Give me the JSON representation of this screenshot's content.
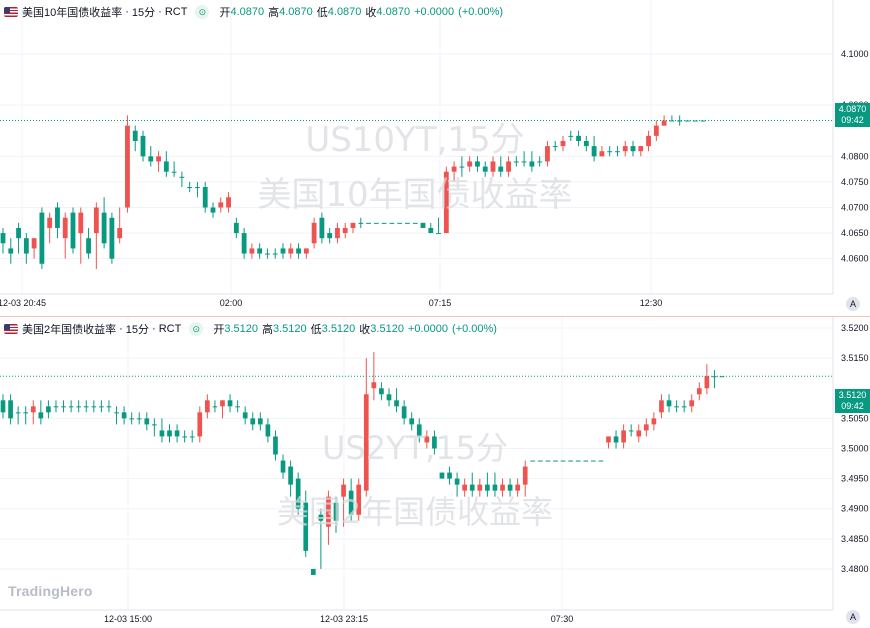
{
  "colors": {
    "up": "#ef5350",
    "down": "#089981",
    "price_badge": "#089981",
    "grid": "#f0f3fa"
  },
  "top_chart": {
    "symbol": "美国10年国债收益率",
    "interval": "15分",
    "session": "RCT",
    "open_label": "开",
    "open": "4.0870",
    "high_label": "高",
    "high": "4.0870",
    "low_label": "低",
    "low": "4.0870",
    "close_label": "收",
    "close": "4.0870",
    "change": "+0.0000",
    "change_pct": "(+0.00%)",
    "watermark_line1": "US10YT,15分",
    "watermark_line2": "美国10年国债收益率",
    "price_badge": "4.0870",
    "countdown": "09:42",
    "auto_scale_label": "A"
  },
  "bottom_chart": {
    "symbol": "美国2年国债收益率",
    "interval": "15分",
    "session": "RCT",
    "open_label": "开",
    "open": "3.5120",
    "high_label": "高",
    "high": "3.5120",
    "low_label": "低",
    "low": "3.5120",
    "close_label": "收",
    "close": "3.5120",
    "change": "+0.0000",
    "change_pct": "(+0.00%)",
    "watermark_line1": "US2YT,15分",
    "watermark_line2": "美国2年国债收益率",
    "price_badge": "3.5120",
    "countdown": "09:42",
    "auto_scale_label": "A",
    "logo": "TradingHero"
  },
  "chart_data": [
    {
      "type": "candlestick",
      "title": "美国10年国债收益率",
      "ylim": [
        4.057,
        4.1045
      ],
      "y_ticks": [
        "4.1000",
        "4.0900",
        "4.0800",
        "4.0750",
        "4.0700",
        "4.0650",
        "4.0600"
      ],
      "x_ticks": [
        "12-03 20:45",
        "02:00",
        "07:15",
        "12:30"
      ],
      "last_price": 4.087,
      "candles": [
        [
          4.065,
          4.066,
          4.061,
          4.063
        ],
        [
          4.062,
          4.064,
          4.059,
          4.061
        ],
        [
          4.066,
          4.067,
          4.061,
          4.064
        ],
        [
          4.064,
          4.065,
          4.059,
          4.061
        ],
        [
          4.062,
          4.064,
          4.06,
          4.064
        ],
        [
          4.069,
          4.07,
          4.058,
          4.059
        ],
        [
          4.066,
          4.069,
          4.063,
          4.068
        ],
        [
          4.07,
          4.071,
          4.064,
          4.066
        ],
        [
          4.064,
          4.069,
          4.06,
          4.068
        ],
        [
          4.069,
          4.07,
          4.061,
          4.062
        ],
        [
          4.065,
          4.07,
          4.059,
          4.069
        ],
        [
          4.064,
          4.066,
          4.06,
          4.061
        ],
        [
          4.065,
          4.071,
          4.058,
          4.07
        ],
        [
          4.069,
          4.072,
          4.062,
          4.063
        ],
        [
          4.068,
          4.069,
          4.059,
          4.06
        ],
        [
          4.064,
          4.07,
          4.063,
          4.066
        ],
        [
          4.07,
          4.088,
          4.069,
          4.086
        ],
        [
          4.085,
          4.086,
          4.081,
          4.083
        ],
        [
          4.084,
          4.085,
          4.079,
          4.08
        ],
        [
          4.08,
          4.082,
          4.078,
          4.079
        ],
        [
          4.079,
          4.081,
          4.077,
          4.08
        ],
        [
          4.079,
          4.081,
          4.076,
          4.077
        ],
        [
          4.077,
          4.079,
          4.076,
          4.077
        ],
        [
          4.076,
          4.077,
          4.074,
          4.076
        ],
        [
          4.074,
          4.075,
          4.073,
          4.074
        ],
        [
          4.074,
          4.075,
          4.072,
          4.074
        ],
        [
          4.074,
          4.075,
          4.069,
          4.07
        ],
        [
          4.07,
          4.071,
          4.068,
          4.069
        ],
        [
          4.07,
          4.072,
          4.069,
          4.071
        ],
        [
          4.07,
          4.073,
          4.069,
          4.072
        ],
        [
          4.067,
          4.068,
          4.064,
          4.065
        ],
        [
          4.065,
          4.066,
          4.06,
          4.061
        ],
        [
          4.061,
          4.063,
          4.06,
          4.062
        ],
        [
          4.062,
          4.063,
          4.06,
          4.061
        ],
        [
          4.061,
          4.062,
          4.06,
          4.061
        ],
        [
          4.061,
          4.062,
          4.06,
          4.061
        ],
        [
          4.062,
          4.063,
          4.06,
          4.061
        ],
        [
          4.061,
          4.063,
          4.06,
          4.062
        ],
        [
          4.062,
          4.063,
          4.06,
          4.061
        ],
        [
          4.061,
          4.062,
          4.06,
          4.062
        ],
        [
          4.063,
          4.068,
          4.062,
          4.067
        ],
        [
          4.068,
          4.069,
          4.063,
          4.064
        ],
        [
          4.065,
          4.066,
          4.063,
          4.064
        ],
        [
          4.064,
          4.067,
          4.063,
          4.066
        ],
        [
          4.065,
          4.067,
          4.064,
          4.066
        ],
        [
          4.066,
          4.067,
          4.065,
          4.067
        ],
        [
          4.067,
          4.068,
          4.066,
          4.067
        ],
        [
          4.067,
          4.067,
          4.067,
          4.067
        ],
        [
          4.067,
          4.067,
          4.067,
          4.067
        ],
        [
          4.067,
          4.067,
          4.067,
          4.067
        ],
        [
          4.067,
          4.067,
          4.067,
          4.067
        ],
        [
          4.067,
          4.067,
          4.067,
          4.067
        ],
        [
          4.067,
          4.067,
          4.067,
          4.067
        ],
        [
          4.067,
          4.067,
          4.067,
          4.067
        ],
        [
          4.067,
          4.067,
          4.066,
          4.066
        ],
        [
          4.066,
          4.067,
          4.065,
          4.065
        ],
        [
          4.065,
          4.068,
          4.065,
          4.065
        ],
        [
          4.065,
          4.078,
          4.065,
          4.077
        ],
        [
          4.077,
          4.079,
          4.075,
          4.078
        ],
        [
          4.078,
          4.08,
          4.076,
          4.078
        ],
        [
          4.078,
          4.08,
          4.077,
          4.079
        ],
        [
          4.079,
          4.08,
          4.077,
          4.078
        ],
        [
          4.078,
          4.079,
          4.076,
          4.077
        ],
        [
          4.077,
          4.08,
          4.076,
          4.079
        ],
        [
          4.078,
          4.08,
          4.076,
          4.077
        ],
        [
          4.077,
          4.08,
          4.076,
          4.079
        ],
        [
          4.079,
          4.08,
          4.078,
          4.079
        ],
        [
          4.079,
          4.081,
          4.078,
          4.079
        ],
        [
          4.079,
          4.081,
          4.077,
          4.078
        ],
        [
          4.079,
          4.08,
          4.078,
          4.079
        ],
        [
          4.079,
          4.083,
          4.078,
          4.082
        ],
        [
          4.082,
          4.083,
          4.081,
          4.082
        ],
        [
          4.082,
          4.084,
          4.081,
          4.083
        ],
        [
          4.084,
          4.085,
          4.083,
          4.084
        ],
        [
          4.084,
          4.085,
          4.082,
          4.083
        ],
        [
          4.083,
          4.084,
          4.081,
          4.082
        ],
        [
          4.082,
          4.084,
          4.079,
          4.08
        ],
        [
          4.08,
          4.082,
          4.08,
          4.081
        ],
        [
          4.081,
          4.082,
          4.08,
          4.081
        ],
        [
          4.081,
          4.082,
          4.08,
          4.081
        ],
        [
          4.081,
          4.083,
          4.08,
          4.082
        ],
        [
          4.082,
          4.083,
          4.08,
          4.081
        ],
        [
          4.081,
          4.082,
          4.08,
          4.082
        ],
        [
          4.082,
          4.085,
          4.081,
          4.084
        ],
        [
          4.084,
          4.087,
          4.083,
          4.086
        ],
        [
          4.086,
          4.088,
          4.086,
          4.087
        ],
        [
          4.087,
          4.088,
          4.087,
          4.087
        ],
        [
          4.087,
          4.088,
          4.086,
          4.087
        ],
        [
          4.087,
          4.087,
          4.087,
          4.087
        ],
        [
          4.087,
          4.087,
          4.087,
          4.087
        ],
        [
          4.087,
          4.087,
          4.087,
          4.087
        ]
      ]
    },
    {
      "type": "candlestick",
      "title": "美国2年国债收益率",
      "ylim": [
        3.477,
        3.5215
      ],
      "y_ticks": [
        "3.5200",
        "3.5150",
        "3.5050",
        "3.5000",
        "3.4950",
        "3.4900",
        "3.4850",
        "3.4800"
      ],
      "x_ticks": [
        "12-03 15:00",
        "12-03 23:15",
        "07:30"
      ],
      "last_price": 3.512,
      "candles": [
        [
          3.508,
          3.509,
          3.505,
          3.506
        ],
        [
          3.508,
          3.509,
          3.504,
          3.505
        ],
        [
          3.506,
          3.507,
          3.504,
          3.506
        ],
        [
          3.506,
          3.507,
          3.504,
          3.506
        ],
        [
          3.506,
          3.508,
          3.504,
          3.507
        ],
        [
          3.506,
          3.508,
          3.504,
          3.505
        ],
        [
          3.507,
          3.508,
          3.505,
          3.506
        ],
        [
          3.507,
          3.508,
          3.506,
          3.507
        ],
        [
          3.507,
          3.508,
          3.506,
          3.507
        ],
        [
          3.507,
          3.508,
          3.506,
          3.507
        ],
        [
          3.507,
          3.508,
          3.506,
          3.507
        ],
        [
          3.507,
          3.508,
          3.506,
          3.507
        ],
        [
          3.507,
          3.508,
          3.506,
          3.507
        ],
        [
          3.507,
          3.508,
          3.506,
          3.507
        ],
        [
          3.507,
          3.508,
          3.506,
          3.507
        ],
        [
          3.506,
          3.507,
          3.504,
          3.506
        ],
        [
          3.506,
          3.507,
          3.504,
          3.505
        ],
        [
          3.505,
          3.506,
          3.504,
          3.505
        ],
        [
          3.505,
          3.506,
          3.504,
          3.505
        ],
        [
          3.505,
          3.506,
          3.503,
          3.504
        ],
        [
          3.504,
          3.505,
          3.502,
          3.504
        ],
        [
          3.503,
          3.505,
          3.501,
          3.502
        ],
        [
          3.503,
          3.504,
          3.501,
          3.502
        ],
        [
          3.503,
          3.504,
          3.501,
          3.502
        ],
        [
          3.502,
          3.503,
          3.501,
          3.502
        ],
        [
          3.502,
          3.503,
          3.501,
          3.502
        ],
        [
          3.502,
          3.507,
          3.501,
          3.506
        ],
        [
          3.506,
          3.509,
          3.505,
          3.508
        ],
        [
          3.507,
          3.508,
          3.506,
          3.507
        ],
        [
          3.507,
          3.508,
          3.505,
          3.508
        ],
        [
          3.508,
          3.509,
          3.506,
          3.507
        ],
        [
          3.507,
          3.508,
          3.506,
          3.507
        ],
        [
          3.506,
          3.507,
          3.504,
          3.505
        ],
        [
          3.505,
          3.506,
          3.503,
          3.504
        ],
        [
          3.505,
          3.506,
          3.503,
          3.504
        ],
        [
          3.504,
          3.505,
          3.501,
          3.502
        ],
        [
          3.502,
          3.503,
          3.498,
          3.499
        ],
        [
          3.498,
          3.499,
          3.495,
          3.496
        ],
        [
          3.497,
          3.498,
          3.492,
          3.494
        ],
        [
          3.495,
          3.496,
          3.489,
          3.49
        ],
        [
          3.491,
          3.493,
          3.482,
          3.483
        ],
        [
          3.48,
          3.48,
          3.479,
          3.479
        ],
        [
          3.489,
          3.49,
          3.48,
          3.488
        ],
        [
          3.487,
          3.493,
          3.484,
          3.492
        ],
        [
          3.491,
          3.492,
          3.486,
          3.488
        ],
        [
          3.492,
          3.495,
          3.487,
          3.494
        ],
        [
          3.493,
          3.495,
          3.488,
          3.489
        ],
        [
          3.489,
          3.495,
          3.488,
          3.494
        ],
        [
          3.493,
          3.515,
          3.492,
          3.509
        ],
        [
          3.51,
          3.516,
          3.508,
          3.511
        ],
        [
          3.51,
          3.511,
          3.508,
          3.509
        ],
        [
          3.509,
          3.51,
          3.507,
          3.508
        ],
        [
          3.508,
          3.51,
          3.506,
          3.507
        ],
        [
          3.507,
          3.508,
          3.504,
          3.505
        ],
        [
          3.505,
          3.506,
          3.503,
          3.504
        ],
        [
          3.504,
          3.505,
          3.501,
          3.502
        ],
        [
          3.501,
          3.503,
          3.5,
          3.502
        ],
        [
          3.502,
          3.503,
          3.499,
          3.5
        ],
        [
          3.496,
          3.496,
          3.495,
          3.495
        ],
        [
          3.496,
          3.497,
          3.494,
          3.495
        ],
        [
          3.495,
          3.496,
          3.492,
          3.494
        ],
        [
          3.493,
          3.495,
          3.492,
          3.494
        ],
        [
          3.494,
          3.496,
          3.492,
          3.493
        ],
        [
          3.493,
          3.495,
          3.492,
          3.494
        ],
        [
          3.494,
          3.496,
          3.492,
          3.493
        ],
        [
          3.494,
          3.496,
          3.492,
          3.493
        ],
        [
          3.493,
          3.495,
          3.492,
          3.494
        ],
        [
          3.494,
          3.495,
          3.492,
          3.493
        ],
        [
          3.493,
          3.495,
          3.492,
          3.494
        ],
        [
          3.494,
          3.498,
          3.492,
          3.497
        ],
        [
          3.498,
          3.498,
          3.498,
          3.498
        ],
        [
          3.498,
          3.498,
          3.498,
          3.498
        ],
        [
          3.498,
          3.498,
          3.498,
          3.498
        ],
        [
          3.498,
          3.498,
          3.498,
          3.498
        ],
        [
          3.498,
          3.498,
          3.498,
          3.498
        ],
        [
          3.498,
          3.498,
          3.498,
          3.498
        ],
        [
          3.498,
          3.498,
          3.498,
          3.498
        ],
        [
          3.498,
          3.498,
          3.498,
          3.498
        ],
        [
          3.498,
          3.498,
          3.498,
          3.498
        ],
        [
          3.498,
          3.498,
          3.498,
          3.498
        ],
        [
          3.501,
          3.502,
          3.5,
          3.502
        ],
        [
          3.502,
          3.503,
          3.5,
          3.501
        ],
        [
          3.501,
          3.504,
          3.5,
          3.503
        ],
        [
          3.503,
          3.504,
          3.502,
          3.503
        ],
        [
          3.502,
          3.504,
          3.501,
          3.503
        ],
        [
          3.503,
          3.505,
          3.502,
          3.504
        ],
        [
          3.504,
          3.506,
          3.503,
          3.505
        ],
        [
          3.506,
          3.509,
          3.505,
          3.508
        ],
        [
          3.508,
          3.509,
          3.506,
          3.507
        ],
        [
          3.507,
          3.508,
          3.506,
          3.507
        ],
        [
          3.507,
          3.508,
          3.506,
          3.507
        ],
        [
          3.507,
          3.509,
          3.506,
          3.508
        ],
        [
          3.509,
          3.511,
          3.508,
          3.51
        ],
        [
          3.51,
          3.514,
          3.509,
          3.512
        ],
        [
          3.512,
          3.513,
          3.51,
          3.512
        ],
        [
          3.512,
          3.512,
          3.512,
          3.512
        ]
      ]
    }
  ]
}
